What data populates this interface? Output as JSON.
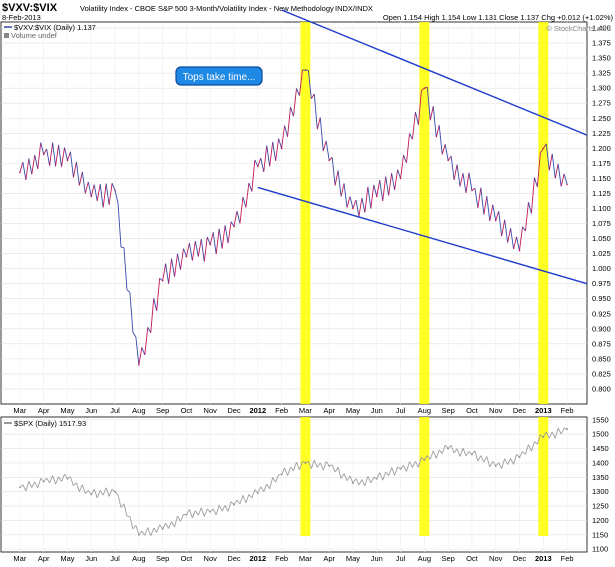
{
  "header": {
    "symbol": "$VXV:$VIX",
    "description": "Volatility Index - CBOE S&P 500 3-Month/Volatility Index - New Methodology",
    "exchange": "INDX/INDX",
    "date": "8-Feb-2013",
    "ohlc": "Open 1.154  High 1.154  Low 1.131  Close 1.137  Chg +0.012 (+1.02%)",
    "watermark": "© StockCharts.com"
  },
  "main_panel": {
    "legend_series": "$VXV:$VIX (Daily) 1.137",
    "legend_volume": "Volume undef",
    "annotation": "Tops take time...",
    "series_color": "#c2185b",
    "series_color_2": "#3949ab",
    "trendline_color": "#1e3ccc",
    "highlight_color": "#ffff00"
  },
  "lower_panel": {
    "legend": "$SPX (Daily) 1517.93",
    "series_color": "#9e9e9e"
  },
  "x_axis_labels": [
    "Mar",
    "Apr",
    "May",
    "Jun",
    "Jul",
    "Aug",
    "Sep",
    "Oct",
    "Nov",
    "Dec",
    "2012",
    "Feb",
    "Mar",
    "Apr",
    "May",
    "Jun",
    "Jul",
    "Aug",
    "Sep",
    "Oct",
    "Nov",
    "Dec",
    "2013",
    "Feb"
  ],
  "chart_data": [
    {
      "type": "line",
      "series": [
        {
          "name": "$VXV:$VIX (Daily)"
        }
      ],
      "x": [
        "2011-03",
        "2011-04",
        "2011-05",
        "2011-06",
        "2011-07",
        "2011-08",
        "2011-09",
        "2011-10",
        "2011-11",
        "2011-12",
        "2012-01",
        "2012-02",
        "2012-03",
        "2012-04",
        "2012-05",
        "2012-06",
        "2012-07",
        "2012-08",
        "2012-09",
        "2012-10",
        "2012-11",
        "2012-12",
        "2013-01",
        "2013-02"
      ],
      "values": [
        1.16,
        1.19,
        1.18,
        1.12,
        1.13,
        0.84,
        0.98,
        1.02,
        1.04,
        1.07,
        1.17,
        1.2,
        1.33,
        1.18,
        1.1,
        1.12,
        1.15,
        1.3,
        1.18,
        1.13,
        1.08,
        1.03,
        1.2,
        1.14
      ],
      "ylim": [
        0.775,
        1.41
      ],
      "y_ticks": [
        0.8,
        0.825,
        0.85,
        0.875,
        0.9,
        0.925,
        0.95,
        0.975,
        1.0,
        1.025,
        1.05,
        1.075,
        1.1,
        1.125,
        1.15,
        1.175,
        1.2,
        1.225,
        1.25,
        1.275,
        1.3,
        1.325,
        1.35,
        1.375,
        1.4
      ],
      "trendlines": [
        {
          "from": {
            "x": "2012-01",
            "y": 1.135
          },
          "to": {
            "x": "2013-02",
            "y": 0.975
          }
        },
        {
          "from": {
            "x": "2012-02",
            "y": 1.43
          },
          "to": {
            "x": "2013-02",
            "y": 1.222
          }
        }
      ],
      "highlight_periods": [
        "2012-03",
        "2012-08",
        "2013-01"
      ],
      "grid": true
    },
    {
      "type": "line",
      "series": [
        {
          "name": "$SPX (Daily)"
        }
      ],
      "x": [
        "2011-03",
        "2011-04",
        "2011-05",
        "2011-06",
        "2011-07",
        "2011-08",
        "2011-09",
        "2011-10",
        "2011-11",
        "2011-12",
        "2012-01",
        "2012-02",
        "2012-03",
        "2012-04",
        "2012-05",
        "2012-06",
        "2012-07",
        "2012-08",
        "2012-09",
        "2012-10",
        "2012-11",
        "2012-12",
        "2013-01",
        "2013-02"
      ],
      "values": [
        1315,
        1335,
        1345,
        1290,
        1300,
        1150,
        1170,
        1220,
        1230,
        1255,
        1295,
        1360,
        1400,
        1390,
        1330,
        1345,
        1380,
        1410,
        1450,
        1430,
        1390,
        1420,
        1490,
        1517.93
      ],
      "ylim": [
        1090,
        1560
      ],
      "y_ticks": [
        1100,
        1150,
        1200,
        1250,
        1300,
        1350,
        1400,
        1450,
        1500,
        1550
      ],
      "grid": true
    }
  ]
}
